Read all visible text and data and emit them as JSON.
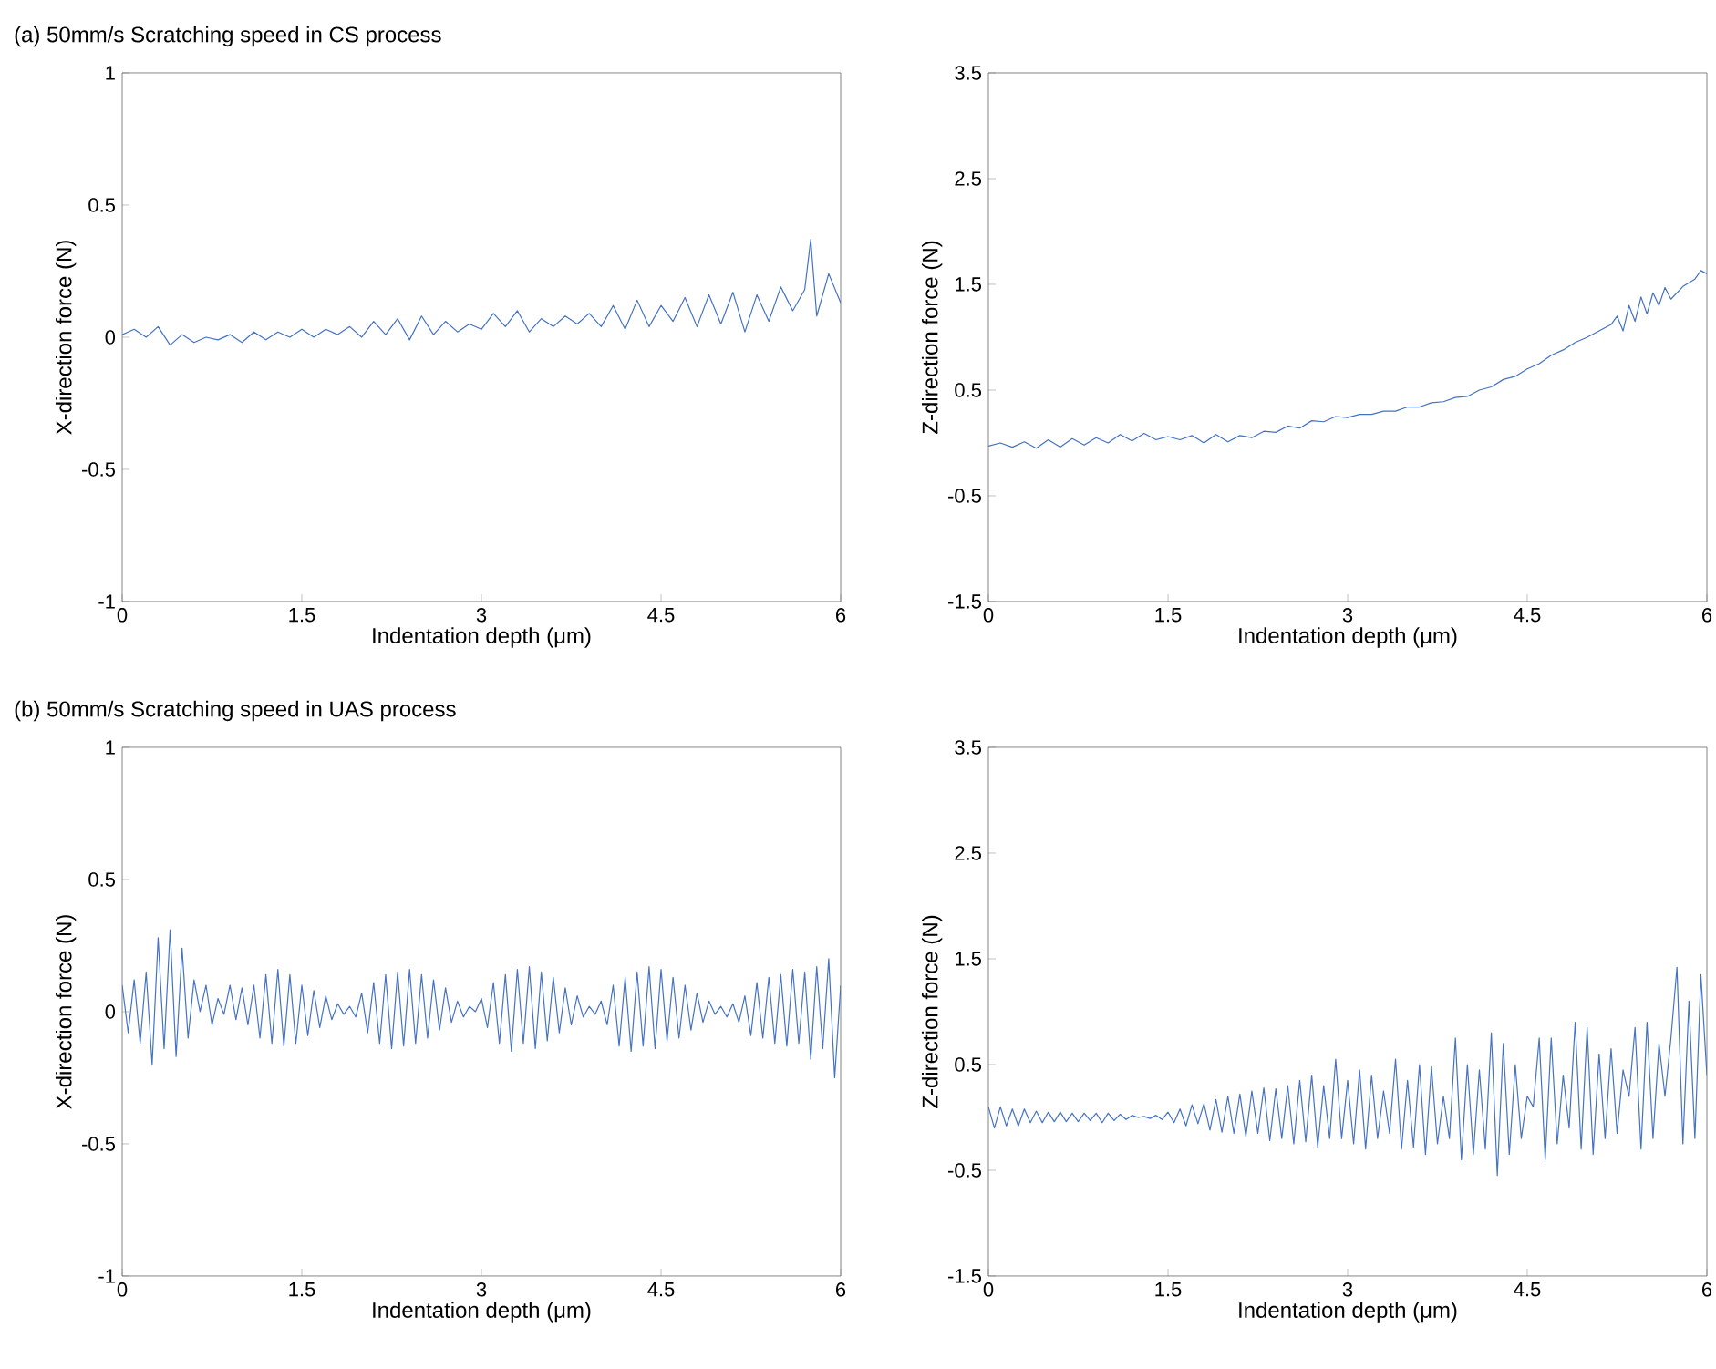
{
  "chart_data": [
    {
      "type": "line",
      "title": "(a) 50mm/s Scratching speed in CS process",
      "xlabel": "Indentation depth (μm)",
      "ylabel": "X-direction force (N)",
      "color": "#4472c4",
      "xlim": [
        0,
        6
      ],
      "ylim": [
        -1,
        1
      ],
      "xticks": [
        0,
        1.5,
        3,
        4.5,
        6
      ],
      "yticks": [
        -1,
        -0.5,
        0,
        0.5,
        1
      ],
      "x": [
        0,
        0.1,
        0.2,
        0.3,
        0.4,
        0.5,
        0.6,
        0.7,
        0.8,
        0.9,
        1.0,
        1.1,
        1.2,
        1.3,
        1.4,
        1.5,
        1.6,
        1.7,
        1.8,
        1.9,
        2.0,
        2.1,
        2.2,
        2.3,
        2.4,
        2.5,
        2.6,
        2.7,
        2.8,
        2.9,
        3.0,
        3.1,
        3.2,
        3.3,
        3.4,
        3.5,
        3.6,
        3.7,
        3.8,
        3.9,
        4.0,
        4.1,
        4.2,
        4.3,
        4.4,
        4.5,
        4.6,
        4.7,
        4.8,
        4.9,
        5.0,
        5.1,
        5.2,
        5.3,
        5.4,
        5.5,
        5.6,
        5.7,
        5.75,
        5.8,
        5.9,
        6.0
      ],
      "values": [
        0.01,
        0.03,
        0.0,
        0.04,
        -0.03,
        0.01,
        -0.02,
        0.0,
        -0.01,
        0.01,
        -0.02,
        0.02,
        -0.01,
        0.02,
        0.0,
        0.03,
        0.0,
        0.03,
        0.01,
        0.04,
        0.0,
        0.06,
        0.01,
        0.07,
        -0.01,
        0.08,
        0.01,
        0.06,
        0.02,
        0.05,
        0.03,
        0.09,
        0.04,
        0.1,
        0.02,
        0.07,
        0.04,
        0.08,
        0.05,
        0.09,
        0.04,
        0.12,
        0.03,
        0.14,
        0.04,
        0.12,
        0.06,
        0.15,
        0.04,
        0.16,
        0.05,
        0.17,
        0.02,
        0.16,
        0.06,
        0.19,
        0.1,
        0.18,
        0.37,
        0.08,
        0.24,
        0.13
      ]
    },
    {
      "type": "line",
      "xlabel": "Indentation depth (μm)",
      "ylabel": "Z-direction force (N)",
      "color": "#4472c4",
      "xlim": [
        0,
        6
      ],
      "ylim": [
        -1.5,
        3.5
      ],
      "xticks": [
        0,
        1.5,
        3,
        4.5,
        6
      ],
      "yticks": [
        -1.5,
        -0.5,
        0.5,
        1.5,
        2.5,
        3.5
      ],
      "x": [
        0,
        0.1,
        0.2,
        0.3,
        0.4,
        0.5,
        0.6,
        0.7,
        0.8,
        0.9,
        1.0,
        1.1,
        1.2,
        1.3,
        1.4,
        1.5,
        1.6,
        1.7,
        1.8,
        1.9,
        2.0,
        2.1,
        2.2,
        2.3,
        2.4,
        2.5,
        2.6,
        2.7,
        2.8,
        2.9,
        3.0,
        3.1,
        3.2,
        3.3,
        3.4,
        3.5,
        3.6,
        3.7,
        3.8,
        3.9,
        4.0,
        4.1,
        4.2,
        4.3,
        4.4,
        4.5,
        4.6,
        4.7,
        4.8,
        4.9,
        5.0,
        5.1,
        5.2,
        5.25,
        5.3,
        5.35,
        5.4,
        5.45,
        5.5,
        5.55,
        5.6,
        5.65,
        5.7,
        5.8,
        5.9,
        5.95,
        6.0
      ],
      "values": [
        -0.03,
        0.0,
        -0.04,
        0.01,
        -0.05,
        0.03,
        -0.04,
        0.04,
        -0.02,
        0.05,
        0.0,
        0.08,
        0.02,
        0.09,
        0.03,
        0.06,
        0.03,
        0.07,
        0.0,
        0.08,
        0.01,
        0.07,
        0.05,
        0.11,
        0.1,
        0.16,
        0.14,
        0.21,
        0.2,
        0.25,
        0.24,
        0.27,
        0.27,
        0.3,
        0.3,
        0.34,
        0.34,
        0.38,
        0.39,
        0.43,
        0.44,
        0.5,
        0.53,
        0.6,
        0.63,
        0.7,
        0.75,
        0.83,
        0.88,
        0.95,
        1.0,
        1.06,
        1.12,
        1.2,
        1.06,
        1.3,
        1.15,
        1.38,
        1.22,
        1.42,
        1.3,
        1.47,
        1.36,
        1.48,
        1.55,
        1.63,
        1.6
      ]
    },
    {
      "type": "line",
      "title": "(b) 50mm/s Scratching speed in UAS process",
      "xlabel": "Indentation depth (μm)",
      "ylabel": "X-direction force (N)",
      "color": "#4472c4",
      "xlim": [
        0,
        6
      ],
      "ylim": [
        -1,
        1
      ],
      "xticks": [
        0,
        1.5,
        3,
        4.5,
        6
      ],
      "yticks": [
        -1,
        -0.5,
        0,
        0.5,
        1
      ],
      "x": [
        0,
        0.05,
        0.1,
        0.15,
        0.2,
        0.25,
        0.3,
        0.35,
        0.4,
        0.45,
        0.5,
        0.55,
        0.6,
        0.65,
        0.7,
        0.75,
        0.8,
        0.85,
        0.9,
        0.95,
        1.0,
        1.05,
        1.1,
        1.15,
        1.2,
        1.25,
        1.3,
        1.35,
        1.4,
        1.45,
        1.5,
        1.55,
        1.6,
        1.65,
        1.7,
        1.75,
        1.8,
        1.85,
        1.9,
        1.95,
        2.0,
        2.05,
        2.1,
        2.15,
        2.2,
        2.25,
        2.3,
        2.35,
        2.4,
        2.45,
        2.5,
        2.55,
        2.6,
        2.65,
        2.7,
        2.75,
        2.8,
        2.85,
        2.9,
        2.95,
        3.0,
        3.05,
        3.1,
        3.15,
        3.2,
        3.25,
        3.3,
        3.35,
        3.4,
        3.45,
        3.5,
        3.55,
        3.6,
        3.65,
        3.7,
        3.75,
        3.8,
        3.85,
        3.9,
        3.95,
        4.0,
        4.05,
        4.1,
        4.15,
        4.2,
        4.25,
        4.3,
        4.35,
        4.4,
        4.45,
        4.5,
        4.55,
        4.6,
        4.65,
        4.7,
        4.75,
        4.8,
        4.85,
        4.9,
        4.95,
        5.0,
        5.05,
        5.1,
        5.15,
        5.2,
        5.25,
        5.3,
        5.35,
        5.4,
        5.45,
        5.5,
        5.55,
        5.6,
        5.65,
        5.7,
        5.75,
        5.8,
        5.85,
        5.9,
        5.95,
        6.0
      ],
      "values": [
        0.1,
        -0.08,
        0.12,
        -0.12,
        0.15,
        -0.2,
        0.28,
        -0.14,
        0.31,
        -0.17,
        0.24,
        -0.1,
        0.12,
        0.0,
        0.1,
        -0.05,
        0.05,
        -0.01,
        0.1,
        -0.03,
        0.09,
        -0.05,
        0.1,
        -0.1,
        0.14,
        -0.12,
        0.16,
        -0.13,
        0.14,
        -0.12,
        0.1,
        -0.09,
        0.08,
        -0.06,
        0.06,
        -0.03,
        0.03,
        -0.01,
        0.02,
        -0.02,
        0.07,
        -0.08,
        0.11,
        -0.12,
        0.14,
        -0.14,
        0.15,
        -0.13,
        0.16,
        -0.12,
        0.14,
        -0.1,
        0.12,
        -0.07,
        0.09,
        -0.04,
        0.04,
        -0.02,
        0.02,
        0.0,
        0.05,
        -0.06,
        0.11,
        -0.12,
        0.14,
        -0.15,
        0.16,
        -0.12,
        0.17,
        -0.14,
        0.15,
        -0.11,
        0.13,
        -0.08,
        0.09,
        -0.05,
        0.06,
        -0.02,
        0.02,
        -0.01,
        0.04,
        -0.05,
        0.1,
        -0.13,
        0.13,
        -0.15,
        0.15,
        -0.13,
        0.17,
        -0.14,
        0.16,
        -0.11,
        0.13,
        -0.1,
        0.1,
        -0.07,
        0.07,
        -0.04,
        0.04,
        -0.01,
        0.02,
        -0.02,
        0.03,
        -0.04,
        0.06,
        -0.09,
        0.11,
        -0.1,
        0.13,
        -0.12,
        0.14,
        -0.13,
        0.16,
        -0.12,
        0.15,
        -0.18,
        0.17,
        -0.14,
        0.2,
        -0.25,
        0.1
      ]
    },
    {
      "type": "line",
      "xlabel": "Indentation depth (μm)",
      "ylabel": "Z-direction force (N)",
      "color": "#4472c4",
      "xlim": [
        0,
        6
      ],
      "ylim": [
        -1.5,
        3.5
      ],
      "xticks": [
        0,
        1.5,
        3,
        4.5,
        6
      ],
      "yticks": [
        -1.5,
        -0.5,
        0.5,
        1.5,
        2.5,
        3.5
      ],
      "x": [
        0,
        0.05,
        0.1,
        0.15,
        0.2,
        0.25,
        0.3,
        0.35,
        0.4,
        0.45,
        0.5,
        0.55,
        0.6,
        0.65,
        0.7,
        0.75,
        0.8,
        0.85,
        0.9,
        0.95,
        1.0,
        1.05,
        1.1,
        1.15,
        1.2,
        1.25,
        1.3,
        1.35,
        1.4,
        1.45,
        1.5,
        1.55,
        1.6,
        1.65,
        1.7,
        1.75,
        1.8,
        1.85,
        1.9,
        1.95,
        2.0,
        2.05,
        2.1,
        2.15,
        2.2,
        2.25,
        2.3,
        2.35,
        2.4,
        2.45,
        2.5,
        2.55,
        2.6,
        2.65,
        2.7,
        2.75,
        2.8,
        2.85,
        2.9,
        2.95,
        3.0,
        3.05,
        3.1,
        3.15,
        3.2,
        3.25,
        3.3,
        3.35,
        3.4,
        3.45,
        3.5,
        3.55,
        3.6,
        3.65,
        3.7,
        3.75,
        3.8,
        3.85,
        3.9,
        3.95,
        4.0,
        4.05,
        4.1,
        4.15,
        4.2,
        4.25,
        4.3,
        4.35,
        4.4,
        4.45,
        4.5,
        4.55,
        4.6,
        4.65,
        4.7,
        4.75,
        4.8,
        4.85,
        4.9,
        4.95,
        5.0,
        5.05,
        5.1,
        5.15,
        5.2,
        5.25,
        5.3,
        5.35,
        5.4,
        5.45,
        5.5,
        5.55,
        5.6,
        5.65,
        5.7,
        5.75,
        5.8,
        5.85,
        5.9,
        5.95,
        6.0
      ],
      "values": [
        0.1,
        -0.1,
        0.1,
        -0.08,
        0.08,
        -0.08,
        0.08,
        -0.05,
        0.06,
        -0.05,
        0.05,
        -0.04,
        0.05,
        -0.04,
        0.04,
        -0.04,
        0.04,
        -0.03,
        0.04,
        -0.05,
        0.04,
        -0.03,
        0.03,
        -0.02,
        0.02,
        0.0,
        0.01,
        -0.01,
        0.02,
        -0.02,
        0.05,
        -0.05,
        0.08,
        -0.08,
        0.12,
        -0.06,
        0.13,
        -0.12,
        0.17,
        -0.14,
        0.2,
        -0.15,
        0.22,
        -0.18,
        0.25,
        -0.15,
        0.28,
        -0.22,
        0.27,
        -0.2,
        0.3,
        -0.25,
        0.35,
        -0.23,
        0.4,
        -0.28,
        0.3,
        -0.2,
        0.55,
        -0.2,
        0.35,
        -0.25,
        0.45,
        -0.3,
        0.4,
        -0.2,
        0.25,
        -0.15,
        0.55,
        -0.3,
        0.35,
        -0.28,
        0.5,
        -0.35,
        0.48,
        -0.25,
        0.2,
        -0.2,
        0.75,
        -0.4,
        0.5,
        -0.35,
        0.45,
        -0.3,
        0.8,
        -0.55,
        0.7,
        -0.35,
        0.5,
        -0.2,
        0.2,
        0.1,
        0.75,
        -0.4,
        0.75,
        -0.25,
        0.4,
        -0.1,
        0.9,
        -0.3,
        0.85,
        -0.35,
        0.6,
        -0.2,
        0.65,
        -0.15,
        0.45,
        0.2,
        0.85,
        -0.3,
        0.9,
        -0.2,
        0.7,
        0.2,
        0.75,
        1.42,
        -0.25,
        1.1,
        -0.2,
        1.35,
        0.4
      ]
    }
  ]
}
